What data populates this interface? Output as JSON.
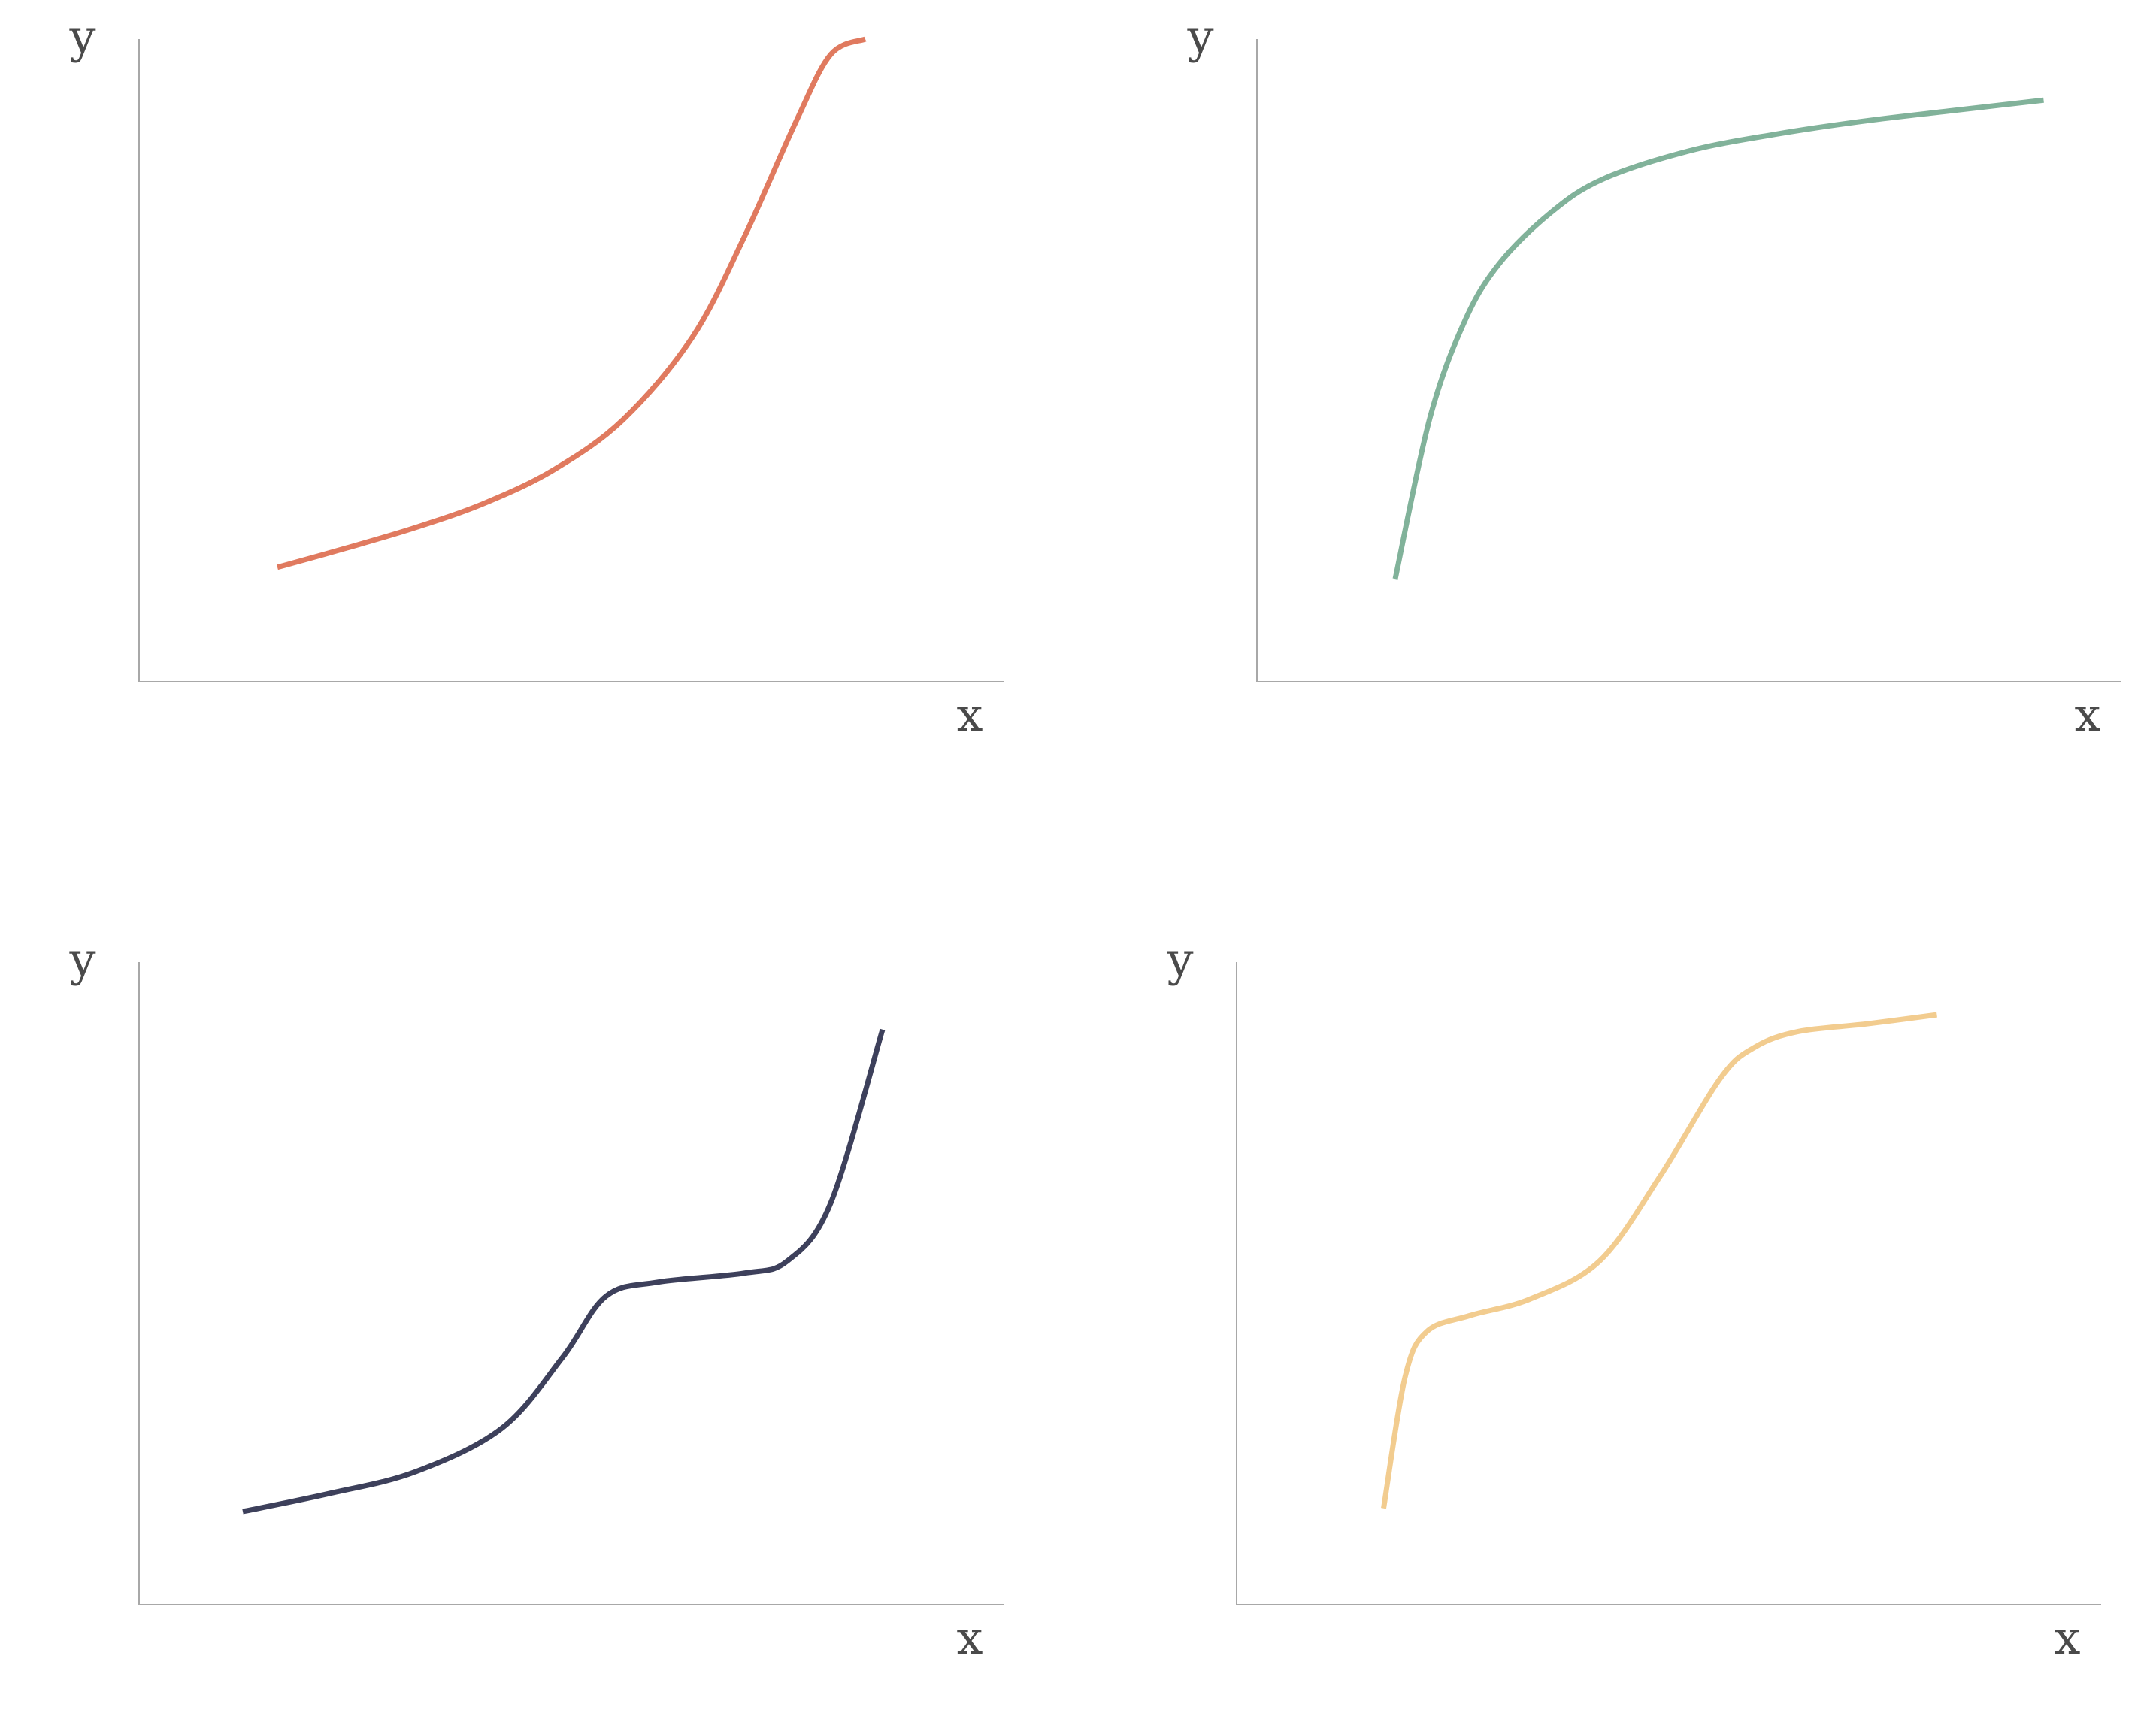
{
  "chart_data": [
    {
      "type": "line",
      "xlabel": "x",
      "ylabel": "y",
      "xlim": [
        0,
        10
      ],
      "ylim": [
        0,
        10
      ],
      "grid": false,
      "ticks": false,
      "color": "#e07a5f",
      "series": [
        {
          "x": [
            1.6,
            2.4,
            3.2,
            4.0,
            4.8,
            5.6,
            6.4,
            7.0,
            7.6,
            8.0,
            8.4
          ],
          "values": [
            1.78,
            2.08,
            2.4,
            2.78,
            3.3,
            4.08,
            5.36,
            6.92,
            8.72,
            9.76,
            10.0
          ]
        }
      ]
    },
    {
      "type": "line",
      "xlabel": "x",
      "ylabel": "y",
      "xlim": [
        0,
        10
      ],
      "ylim": [
        0,
        10
      ],
      "grid": false,
      "ticks": false,
      "color": "#81b29a",
      "series": [
        {
          "x": [
            1.6,
            2.0,
            2.4,
            2.8,
            3.4,
            4.0,
            5.0,
            6.0,
            7.0,
            8.0,
            9.1
          ],
          "values": [
            1.6,
            4.1,
            5.6,
            6.5,
            7.3,
            7.82,
            8.26,
            8.52,
            8.72,
            8.88,
            9.05
          ]
        }
      ]
    },
    {
      "type": "line",
      "xlabel": "x",
      "ylabel": "y",
      "xlim": [
        0,
        10
      ],
      "ylim": [
        0,
        10
      ],
      "grid": false,
      "ticks": false,
      "color": "#3d405b",
      "series": [
        {
          "x": [
            1.2,
            2.2,
            3.2,
            4.2,
            4.9,
            5.4,
            6.0,
            7.0,
            7.5,
            8.0,
            8.6
          ],
          "values": [
            1.45,
            1.73,
            2.07,
            2.75,
            3.85,
            4.8,
            5.02,
            5.16,
            5.35,
            6.25,
            8.95
          ]
        }
      ]
    },
    {
      "type": "line",
      "xlabel": "x",
      "ylabel": "y",
      "xlim": [
        0,
        10
      ],
      "ylim": [
        0,
        10
      ],
      "grid": false,
      "ticks": false,
      "color": "#f2cc8f",
      "series": [
        {
          "x": [
            1.7,
            1.95,
            2.2,
            2.7,
            3.4,
            4.2,
            4.9,
            5.6,
            6.0,
            6.5,
            7.3,
            8.1
          ],
          "values": [
            1.5,
            3.55,
            4.25,
            4.5,
            4.76,
            5.35,
            6.67,
            8.2,
            8.68,
            8.92,
            9.04,
            9.18
          ]
        }
      ]
    }
  ]
}
